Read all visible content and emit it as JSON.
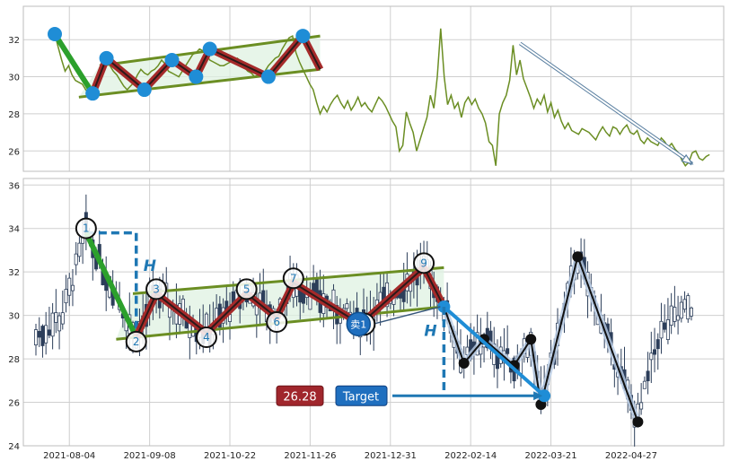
{
  "colors": {
    "price_line": "#6b8e23",
    "channel": "#6b8e23",
    "channel_fill": "#dff2e1",
    "wave_red": "#a52a2a",
    "green_leg": "#2ca02c",
    "pivot_blue": "#1f8dd6",
    "black": "#111111",
    "candle": "#2c3e5a",
    "target_box": "#1f6fbf",
    "price_box": "#a0262c",
    "annot": "#1f78b4"
  },
  "chart_data": [
    {
      "type": "line",
      "panel": "top",
      "y_ticks": [
        26,
        28,
        30,
        32
      ],
      "ylim": [
        24.9,
        33.8
      ],
      "x_index_range": [
        0,
        185
      ],
      "series": [
        {
          "values": [
            32.3,
            31.6,
            30.9,
            30.3,
            30.6,
            30.1,
            29.8,
            29.7,
            29.6,
            29.3,
            29.1,
            29.2,
            29.8,
            30.4,
            30.9,
            31.0,
            30.6,
            30.3,
            30.1,
            29.8,
            29.5,
            29.3,
            29.5,
            29.7,
            30.1,
            30.4,
            30.2,
            30.1,
            30.3,
            30.4,
            30.6,
            30.9,
            30.7,
            30.3,
            30.2,
            30.1,
            30.0,
            30.3,
            30.6,
            30.9,
            31.2,
            31.3,
            31.5,
            31.4,
            31.2,
            30.9,
            30.8,
            30.7,
            30.6,
            30.6,
            30.7,
            30.8,
            30.9,
            31.0,
            30.8,
            30.5,
            30.3,
            30.2,
            30.0,
            30.1,
            30.0,
            30.3,
            30.6,
            30.8,
            31.0,
            31.1,
            31.5,
            31.8,
            32.1,
            32.2,
            31.3,
            30.8,
            30.4,
            30.0,
            29.6,
            29.3,
            28.6,
            28.0,
            28.4,
            28.1,
            28.5,
            28.8,
            29.0,
            28.6,
            28.3,
            28.7,
            28.2,
            28.5,
            28.9,
            28.4,
            28.6,
            28.3,
            28.1,
            28.5,
            28.9,
            28.7,
            28.4,
            28.0,
            27.6,
            27.3,
            26.0,
            26.3,
            28.1,
            27.5,
            27.0,
            26.0,
            26.6,
            27.2,
            27.8,
            29.0,
            28.3,
            30.0,
            32.6,
            30.0,
            28.5,
            29.0,
            28.3,
            28.6,
            27.8,
            28.6,
            28.9,
            28.5,
            28.8,
            28.3,
            28.0,
            27.5,
            26.5,
            26.3,
            25.2,
            28.0,
            28.6,
            29.0,
            29.8,
            31.7,
            30.1,
            30.9,
            29.9,
            29.4,
            28.9,
            28.3,
            28.8,
            28.5,
            29.0,
            28.1,
            28.6,
            27.8,
            28.2,
            27.6,
            27.2,
            27.5,
            27.1,
            27.0,
            26.9,
            27.2,
            27.1,
            27.0,
            26.8,
            26.6,
            27.0,
            27.3,
            27.0,
            26.8,
            27.3,
            27.2,
            26.9,
            27.2,
            27.4,
            27.0,
            26.9,
            27.1,
            26.6,
            26.4,
            26.7,
            26.5,
            26.4,
            26.3,
            26.7,
            26.5,
            26.2,
            26.4,
            26.1,
            25.9,
            25.5,
            25.2,
            25.4,
            25.9,
            26.0,
            25.6,
            25.5,
            25.7,
            25.8
          ]
        }
      ],
      "pivots": [
        [
          0,
          32.3
        ],
        [
          11,
          29.1
        ],
        [
          15,
          31.0
        ],
        [
          26,
          29.3
        ],
        [
          34,
          30.9
        ],
        [
          41,
          30.0
        ],
        [
          45,
          31.5
        ],
        [
          62,
          30.0
        ],
        [
          72,
          32.2
        ],
        [
          77,
          30.4
        ]
      ],
      "channel": {
        "upper": [
          [
            13,
            30.6
          ],
          [
            77,
            32.2
          ]
        ],
        "lower": [
          [
            7,
            28.9
          ],
          [
            77,
            30.4
          ]
        ]
      },
      "projection_arrow": {
        "from": [
          135,
          31.8
        ],
        "to": [
          185,
          25.3
        ]
      }
    },
    {
      "type": "candlestick",
      "panel": "bottom",
      "y_ticks": [
        24,
        26,
        28,
        30,
        32,
        34,
        36
      ],
      "ylim": [
        24,
        36.3
      ],
      "x_tick_labels": [
        "2021-08-04",
        "2021-09-08",
        "2021-10-22",
        "2021-11-26",
        "2021-12-31",
        "2022-02-14",
        "2022-03-21",
        "2022-04-27"
      ],
      "x_tick_index": [
        10,
        34,
        58,
        82,
        106,
        130,
        154,
        178
      ],
      "x_index_range": [
        0,
        196
      ],
      "wave_points": [
        {
          "label": "1",
          "i": 15,
          "v": 33.8
        },
        {
          "label": "2",
          "i": 30,
          "v": 29.0
        },
        {
          "label": "3",
          "i": 36,
          "v": 31.0
        },
        {
          "label": "4",
          "i": 51,
          "v": 29.2
        },
        {
          "label": "5",
          "i": 63,
          "v": 31.0
        },
        {
          "label": "6",
          "i": 72,
          "v": 29.9
        },
        {
          "label": "7",
          "i": 77,
          "v": 31.5
        },
        {
          "label": "卖1",
          "i": 97,
          "v": 29.6
        },
        {
          "label": "9",
          "i": 116,
          "v": 32.2
        }
      ],
      "wave_end": {
        "i": 122,
        "v": 30.4
      },
      "channel": {
        "upper": [
          [
            29,
            31.0
          ],
          [
            122,
            32.2
          ]
        ],
        "lower": [
          [
            24,
            28.9
          ],
          [
            122,
            30.4
          ]
        ]
      },
      "target_leg": {
        "from": [
          122,
          30.4
        ],
        "to": [
          152,
          26.3
        ]
      },
      "target_value": 26.28,
      "target_label": "Target",
      "height_label": "H",
      "black_path": [
        [
          122,
          30.4
        ],
        [
          128,
          27.8
        ],
        [
          134,
          28.9
        ],
        [
          143,
          27.7
        ],
        [
          148,
          28.9
        ],
        [
          151,
          25.9
        ],
        [
          162,
          32.7
        ],
        [
          180,
          25.1
        ]
      ]
    }
  ]
}
